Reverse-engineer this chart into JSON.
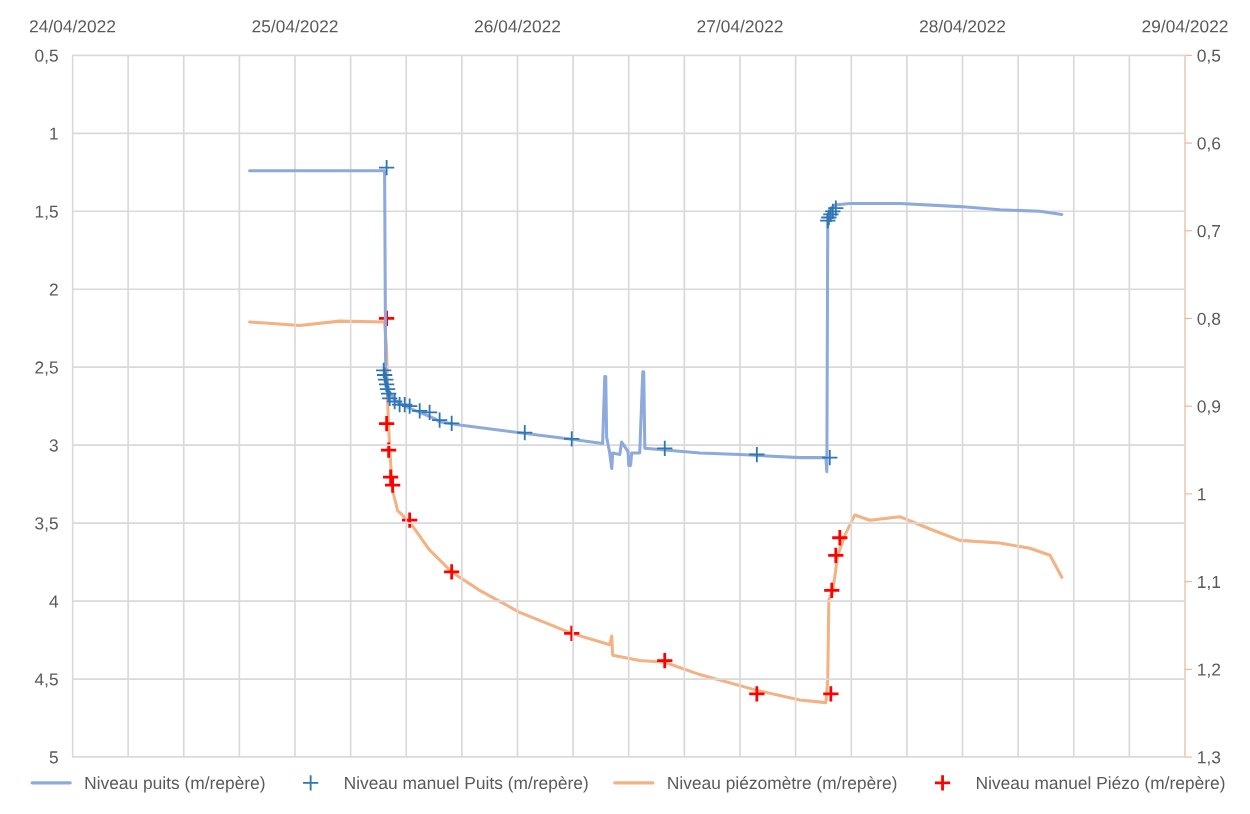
{
  "chart_data": {
    "type": "line",
    "xlim": [
      "2022-04-24T00:00",
      "2022-04-29T00:00"
    ],
    "xticks": [
      {
        "value": "2022-04-24T00:00",
        "label": "24/04/2022"
      },
      {
        "value": "2022-04-24T06:00",
        "label": null
      },
      {
        "value": "2022-04-24T12:00",
        "label": null
      },
      {
        "value": "2022-04-24T18:00",
        "label": null
      },
      {
        "value": "2022-04-25T00:00",
        "label": "25/04/2022"
      },
      {
        "value": "2022-04-25T06:00",
        "label": null
      },
      {
        "value": "2022-04-25T12:00",
        "label": null
      },
      {
        "value": "2022-04-25T18:00",
        "label": null
      },
      {
        "value": "2022-04-26T00:00",
        "label": "26/04/2022"
      },
      {
        "value": "2022-04-26T06:00",
        "label": null
      },
      {
        "value": "2022-04-26T12:00",
        "label": null
      },
      {
        "value": "2022-04-26T18:00",
        "label": null
      },
      {
        "value": "2022-04-27T00:00",
        "label": "27/04/2022"
      },
      {
        "value": "2022-04-27T06:00",
        "label": null
      },
      {
        "value": "2022-04-27T12:00",
        "label": null
      },
      {
        "value": "2022-04-27T18:00",
        "label": null
      },
      {
        "value": "2022-04-28T00:00",
        "label": "28/04/2022"
      },
      {
        "value": "2022-04-28T06:00",
        "label": null
      },
      {
        "value": "2022-04-28T12:00",
        "label": null
      },
      {
        "value": "2022-04-28T18:00",
        "label": null
      },
      {
        "value": "2022-04-29T00:00",
        "label": "29/04/2022"
      }
    ],
    "ylim": [
      5,
      0.5
    ],
    "yticks": [
      {
        "value": 0.5,
        "label": "0,5"
      },
      1,
      {
        "value": 1.5,
        "label": "1,5"
      },
      2,
      {
        "value": 2.5,
        "label": "2,5"
      },
      3,
      {
        "value": 3.5,
        "label": "3,5"
      },
      4,
      {
        "value": 4.5,
        "label": "4,5"
      },
      5
    ],
    "y2lim": [
      1.3,
      0.5
    ],
    "y2ticks": [
      {
        "value": 0.5,
        "label": "0,5"
      },
      {
        "value": 0.6,
        "label": "0,6"
      },
      {
        "value": 0.7,
        "label": "0,7"
      },
      {
        "value": 0.8,
        "label": "0,8"
      },
      {
        "value": 0.9,
        "label": "0,9"
      },
      1,
      {
        "value": 1.1,
        "label": "1,1"
      },
      {
        "value": 1.2,
        "label": "1,2"
      },
      {
        "value": 1.3,
        "label": "1,3"
      }
    ],
    "grid": true,
    "legend": "bottom",
    "series": [
      {
        "name": "Niveau puits (m/repère)",
        "type": "line",
        "color": "#8eaadb",
        "x": [
          "2022-04-24T19:06",
          "2022-04-25T00:30",
          "2022-04-25T09:40",
          "2022-04-25T09:47",
          "2022-04-25T09:53",
          "2022-04-25T10:13",
          "2022-04-25T10:45",
          "2022-04-25T11:50",
          "2022-04-25T13:27",
          "2022-04-25T15:04",
          "2022-04-25T15:36",
          "2022-04-25T17:46",
          "2022-04-26T00:14",
          "2022-04-26T05:38",
          "2022-04-26T09:11",
          "2022-04-26T09:25",
          "2022-04-26T09:31",
          "2022-04-26T09:37",
          "2022-04-26T09:57",
          "2022-04-26T10:10",
          "2022-04-26T10:16",
          "2022-04-26T11:02",
          "2022-04-26T11:14",
          "2022-04-26T11:55",
          "2022-04-26T12:00",
          "2022-04-26T12:12",
          "2022-04-26T12:19",
          "2022-04-26T13:11",
          "2022-04-26T13:31",
          "2022-04-26T13:37",
          "2022-04-26T13:44",
          "2022-04-26T19:40",
          "2022-04-26T23:59",
          "2022-04-27T06:27",
          "2022-04-27T09:16",
          "2022-04-27T09:22",
          "2022-04-27T09:28",
          "2022-04-27T09:41",
          "2022-04-27T10:14",
          "2022-04-27T11:51",
          "2022-04-27T17:14",
          "2022-04-27T23:43",
          "2022-04-28T04:02",
          "2022-04-28T08:21",
          "2022-04-28T10:43"
        ],
        "values": [
          1.24,
          1.24,
          1.24,
          2.6,
          2.65,
          2.66,
          2.71,
          2.75,
          2.79,
          2.83,
          2.85,
          2.87,
          2.92,
          2.96,
          2.99,
          2.56,
          2.56,
          2.95,
          3.05,
          3.15,
          3.05,
          3.06,
          2.98,
          3.04,
          3.13,
          3.13,
          3.05,
          3.05,
          2.53,
          2.53,
          3.02,
          3.05,
          3.06,
          3.08,
          3.08,
          3.17,
          1.53,
          1.49,
          1.46,
          1.45,
          1.45,
          1.47,
          1.49,
          1.5,
          1.52
        ]
      },
      {
        "name": "Niveau manuel Puits (m/repère)",
        "type": "scatter",
        "marker": "cross",
        "color": "#2e75b6",
        "x": [
          "2022-04-25T09:53",
          "2022-04-25T09:34",
          "2022-04-25T09:40",
          "2022-04-25T09:47",
          "2022-04-25T09:53",
          "2022-04-25T09:59",
          "2022-04-25T10:06",
          "2022-04-25T10:13",
          "2022-04-25T10:45",
          "2022-04-25T11:17",
          "2022-04-25T11:50",
          "2022-04-25T12:22",
          "2022-04-25T13:27",
          "2022-04-25T14:31",
          "2022-04-25T15:36",
          "2022-04-25T16:54",
          "2022-04-26T00:47",
          "2022-04-26T05:51",
          "2022-04-26T15:53",
          "2022-04-27T01:49",
          "2022-04-27T09:41",
          "2022-04-27T09:28",
          "2022-04-27T09:35",
          "2022-04-27T09:48",
          "2022-04-27T10:01",
          "2022-04-27T10:20"
        ],
        "values": [
          1.22,
          2.52,
          2.55,
          2.58,
          2.61,
          2.64,
          2.67,
          2.7,
          2.72,
          2.74,
          2.74,
          2.75,
          2.78,
          2.79,
          2.84,
          2.86,
          2.92,
          2.96,
          3.02,
          3.06,
          3.08,
          1.56,
          1.54,
          1.52,
          1.5,
          1.48
        ]
      },
      {
        "name": "Niveau piézomètre (m/repère)",
        "type": "line",
        "axis": "y2",
        "color": "#f4b183",
        "x": [
          "2022-04-24T19:06",
          "2022-04-25T00:30",
          "2022-04-25T04:49",
          "2022-04-25T09:40",
          "2022-04-25T09:53",
          "2022-04-25T09:59",
          "2022-04-25T10:13",
          "2022-04-25T10:32",
          "2022-04-25T11:04",
          "2022-04-25T12:22",
          "2022-04-25T14:31",
          "2022-04-25T16:54",
          "2022-04-25T19:55",
          "2022-04-26T00:14",
          "2022-04-26T05:51",
          "2022-04-26T09:57",
          "2022-04-26T10:10",
          "2022-04-26T10:16",
          "2022-04-26T13:11",
          "2022-04-26T15:53",
          "2022-04-26T19:40",
          "2022-04-27T01:49",
          "2022-04-27T06:27",
          "2022-04-27T09:16",
          "2022-04-27T09:28",
          "2022-04-27T09:35",
          "2022-04-27T10:01",
          "2022-04-27T10:33",
          "2022-04-27T11:19",
          "2022-04-27T12:23",
          "2022-04-27T14:01",
          "2022-04-27T17:14",
          "2022-04-27T20:29",
          "2022-04-27T23:43",
          "2022-04-28T04:02",
          "2022-04-28T07:16",
          "2022-04-28T09:26",
          "2022-04-28T10:43"
        ],
        "values": [
          0.804,
          0.808,
          0.803,
          0.804,
          0.836,
          0.893,
          0.95,
          0.996,
          1.019,
          1.032,
          1.064,
          1.089,
          1.11,
          1.135,
          1.159,
          1.172,
          1.162,
          1.184,
          1.19,
          1.192,
          1.206,
          1.224,
          1.235,
          1.238,
          1.212,
          1.121,
          1.11,
          1.07,
          1.047,
          1.024,
          1.03,
          1.026,
          1.04,
          1.053,
          1.056,
          1.062,
          1.07,
          1.095
        ]
      },
      {
        "name": "Niveau manuel Piézo (m/repère)",
        "type": "scatter",
        "axis": "y2",
        "marker": "cross",
        "color": "#ff0000",
        "x": [
          "2022-04-25T09:53",
          "2022-04-25T09:53",
          "2022-04-25T10:06",
          "2022-04-25T10:19",
          "2022-04-25T10:32",
          "2022-04-25T12:22",
          "2022-04-25T16:54",
          "2022-04-26T05:51",
          "2022-04-26T15:53",
          "2022-04-27T01:49",
          "2022-04-27T09:48",
          "2022-04-27T09:54",
          "2022-04-27T10:20",
          "2022-04-27T10:46"
        ],
        "values": [
          0.8,
          0.92,
          0.95,
          0.981,
          0.99,
          1.03,
          1.089,
          1.159,
          1.19,
          1.228,
          1.228,
          1.11,
          1.07,
          1.05
        ]
      }
    ]
  }
}
